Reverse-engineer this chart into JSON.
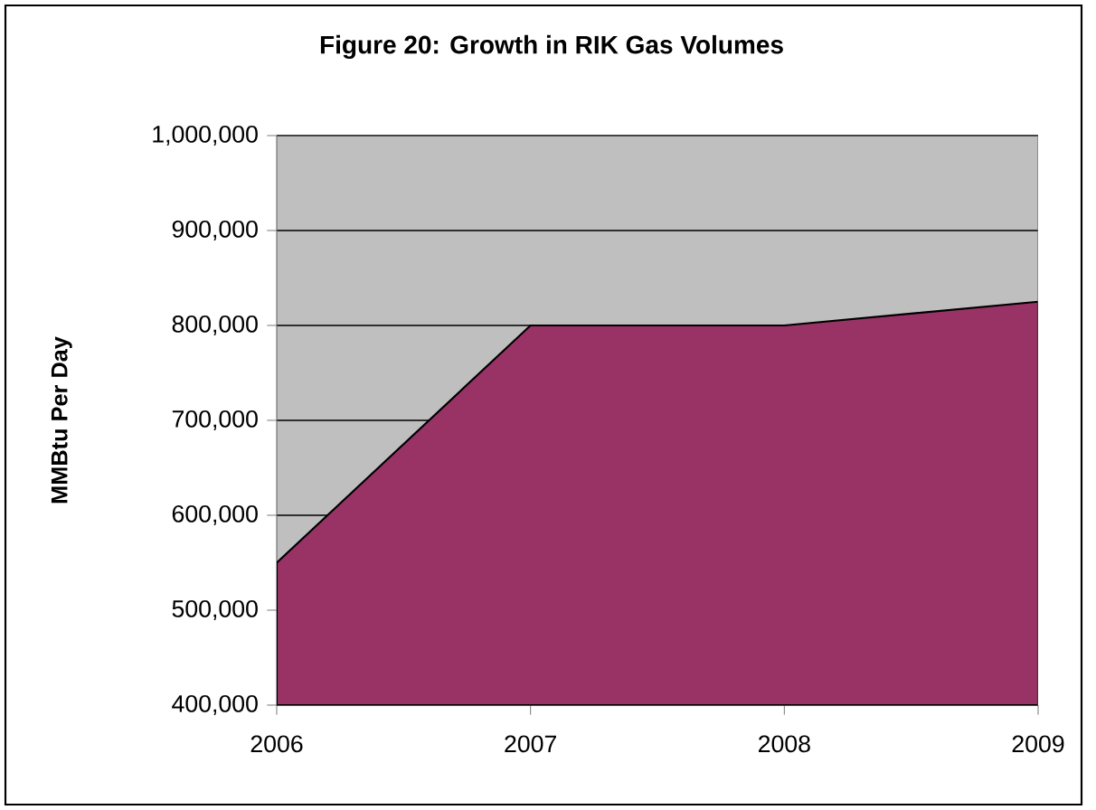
{
  "chart_data": {
    "type": "area",
    "title": "Figure 20: Growth in RIK Gas Volumes",
    "ylabel": "MMBtu Per Day",
    "categories": [
      "2006",
      "2007",
      "2008",
      "2009"
    ],
    "series": [
      {
        "color": "#993366",
        "values": [
          550000,
          800000,
          800000,
          825000
        ]
      }
    ],
    "ylim": [
      400000,
      1000000
    ],
    "yticks": [
      {
        "value": 400000,
        "label": "400,000"
      },
      {
        "value": 500000,
        "label": "500,000"
      },
      {
        "value": 600000,
        "label": "600,000"
      },
      {
        "value": 700000,
        "label": "700,000"
      },
      {
        "value": 800000,
        "label": "800,000"
      },
      {
        "value": 900000,
        "label": "900,000"
      },
      {
        "value": 1000000,
        "label": "1,000,000"
      }
    ],
    "grid": "y"
  }
}
